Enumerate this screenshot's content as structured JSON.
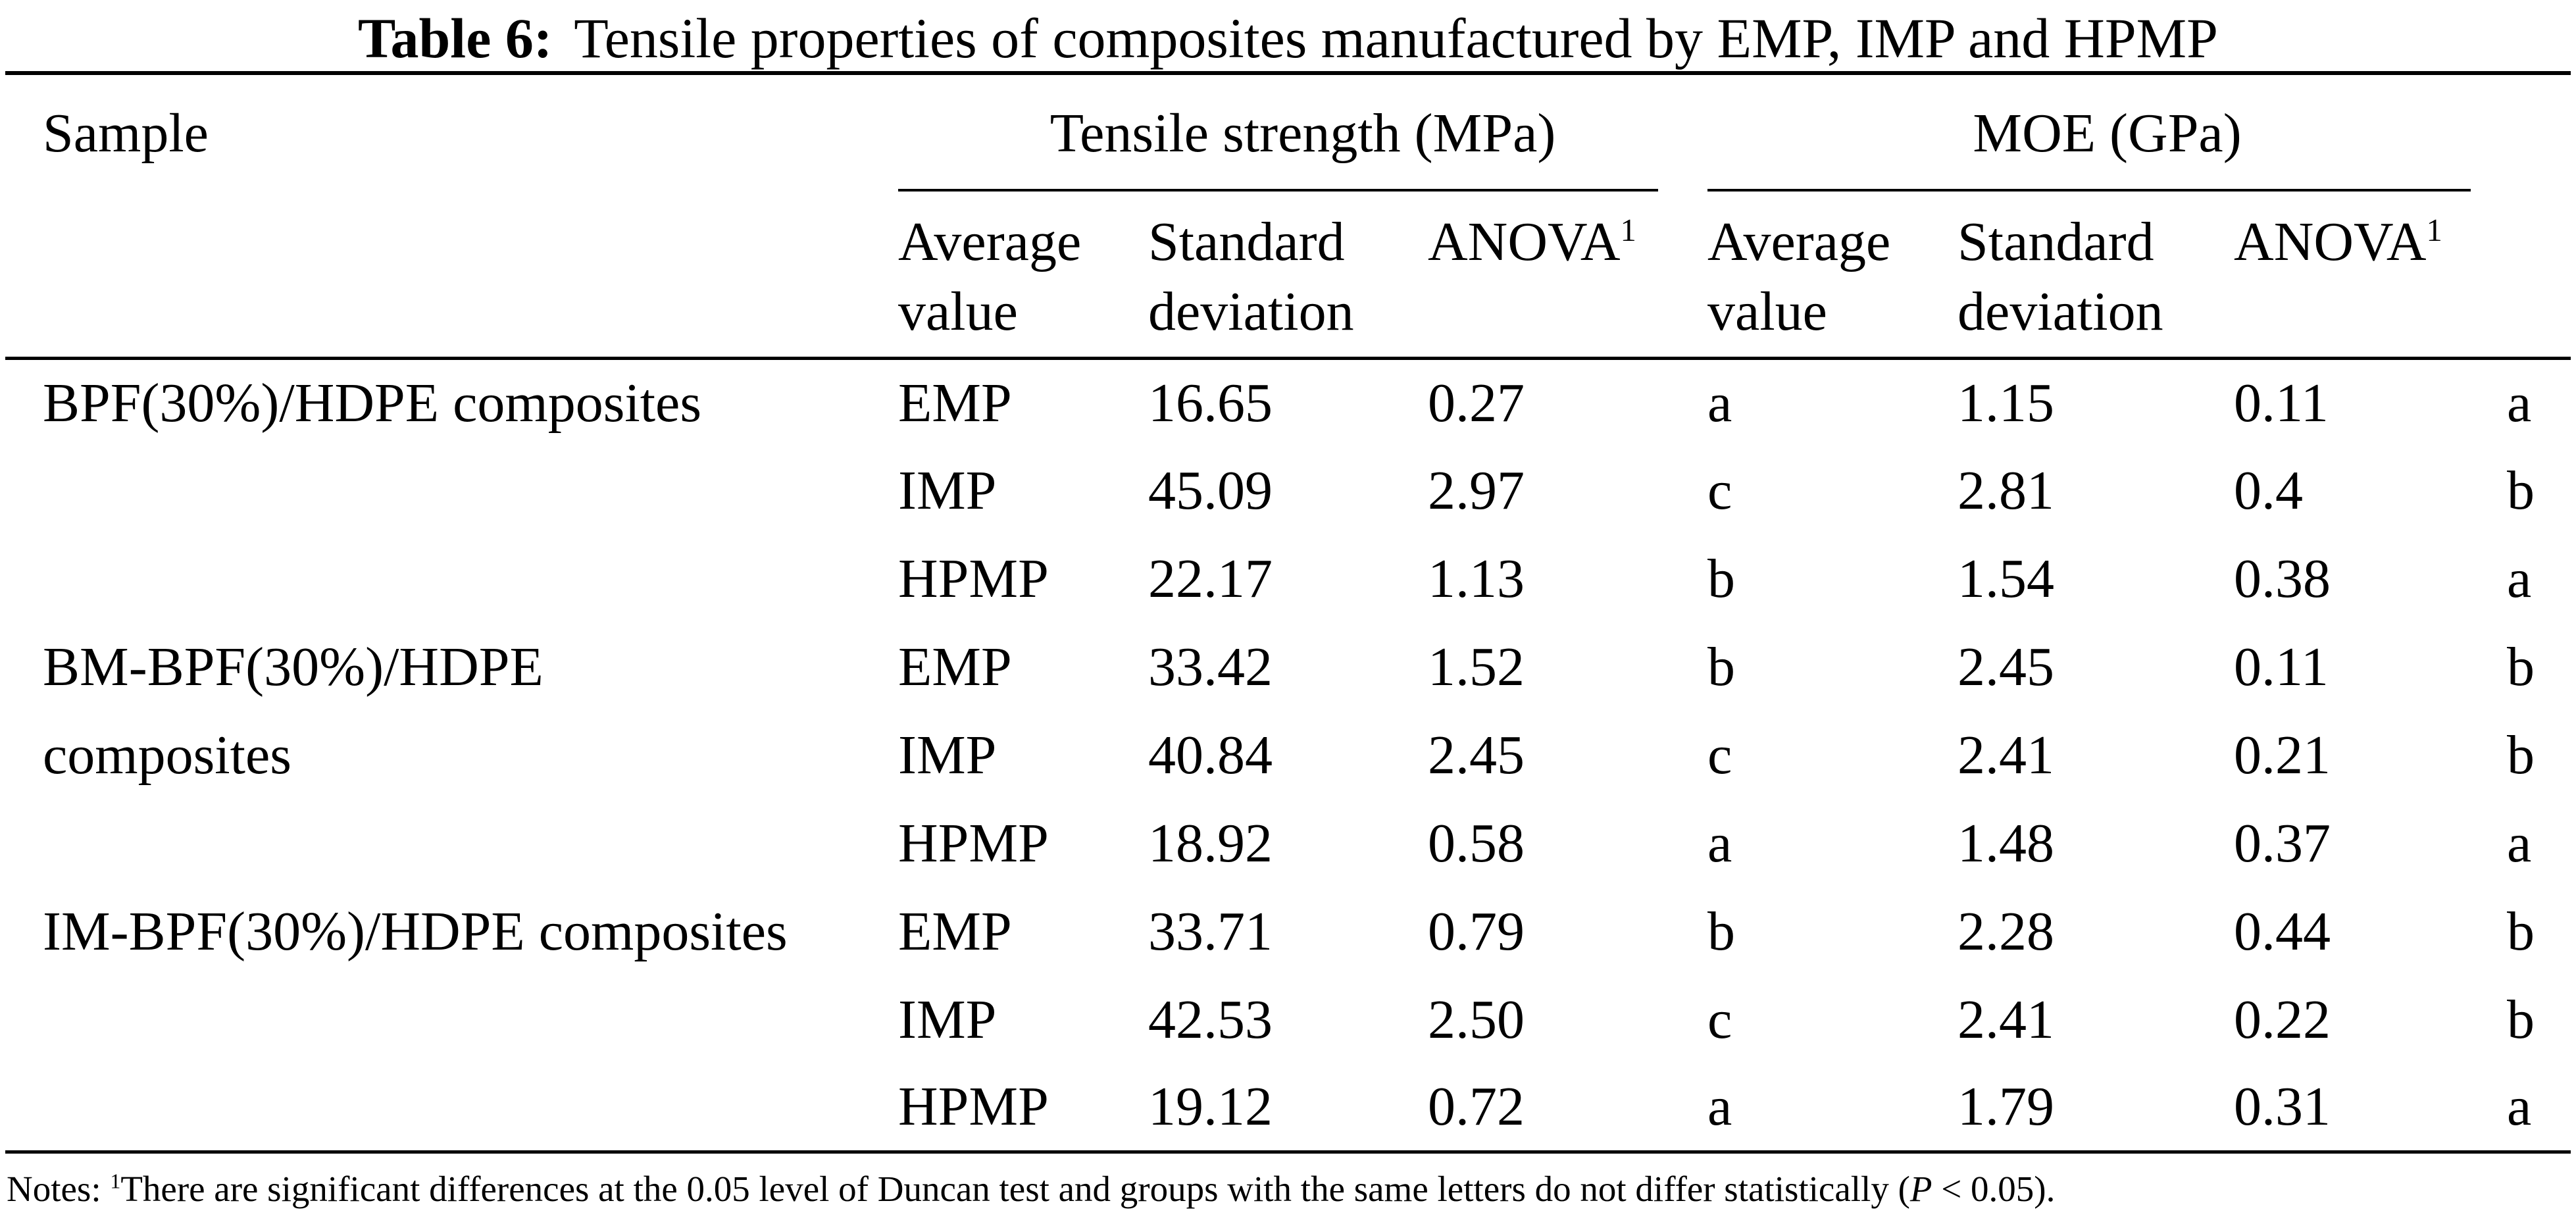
{
  "title": {
    "label": "Table 6:",
    "text": "Tensile properties of composites manufactured by EMP, IMP and HPMP"
  },
  "table": {
    "header": {
      "sample": "Sample",
      "tensile_group": "Tensile strength (MPa)",
      "moe_group": "MOE (GPa)",
      "average_line1": "Average",
      "average_line2": "value",
      "stdev_line1": "Standard",
      "stdev_line2": "deviation",
      "anova_label": "ANOVA",
      "anova_sup": "1"
    },
    "rows": [
      {
        "sample": "BPF(30%)/HDPE composites",
        "method": "EMP",
        "ts_avg": "16.65",
        "ts_std": "0.27",
        "ts_anova": "a",
        "moe_avg": "1.15",
        "moe_std": "0.11",
        "moe_anova": "a"
      },
      {
        "sample": "",
        "method": "IMP",
        "ts_avg": "45.09",
        "ts_std": "2.97",
        "ts_anova": "c",
        "moe_avg": "2.81",
        "moe_std": "0.4",
        "moe_anova": "b"
      },
      {
        "sample": "",
        "method": "HPMP",
        "ts_avg": "22.17",
        "ts_std": "1.13",
        "ts_anova": "b",
        "moe_avg": "1.54",
        "moe_std": "0.38",
        "moe_anova": "a"
      },
      {
        "sample": "BM-BPF(30%)/HDPE",
        "method": "EMP",
        "ts_avg": "33.42",
        "ts_std": "1.52",
        "ts_anova": "b",
        "moe_avg": "2.45",
        "moe_std": "0.11",
        "moe_anova": "b"
      },
      {
        "sample": "composites",
        "method": "IMP",
        "ts_avg": "40.84",
        "ts_std": "2.45",
        "ts_anova": "c",
        "moe_avg": "2.41",
        "moe_std": "0.21",
        "moe_anova": "b"
      },
      {
        "sample": "",
        "method": "HPMP",
        "ts_avg": "18.92",
        "ts_std": "0.58",
        "ts_anova": "a",
        "moe_avg": "1.48",
        "moe_std": "0.37",
        "moe_anova": "a"
      },
      {
        "sample": "IM-BPF(30%)/HDPE composites",
        "method": "EMP",
        "ts_avg": "33.71",
        "ts_std": "0.79",
        "ts_anova": "b",
        "moe_avg": "2.28",
        "moe_std": "0.44",
        "moe_anova": "b"
      },
      {
        "sample": "",
        "method": "IMP",
        "ts_avg": "42.53",
        "ts_std": "2.50",
        "ts_anova": "c",
        "moe_avg": "2.41",
        "moe_std": "0.22",
        "moe_anova": "b"
      },
      {
        "sample": "",
        "method": "HPMP",
        "ts_avg": "19.12",
        "ts_std": "0.72",
        "ts_anova": "a",
        "moe_avg": "1.79",
        "moe_std": "0.31",
        "moe_anova": "a"
      }
    ]
  },
  "notes": {
    "prefix": "Notes: ",
    "sup": "1",
    "body": "There are significant differences at the 0.05 level of Duncan test and groups with the same letters do not differ statistically (",
    "p_symbol": "P",
    "tail": " < 0.05)."
  }
}
